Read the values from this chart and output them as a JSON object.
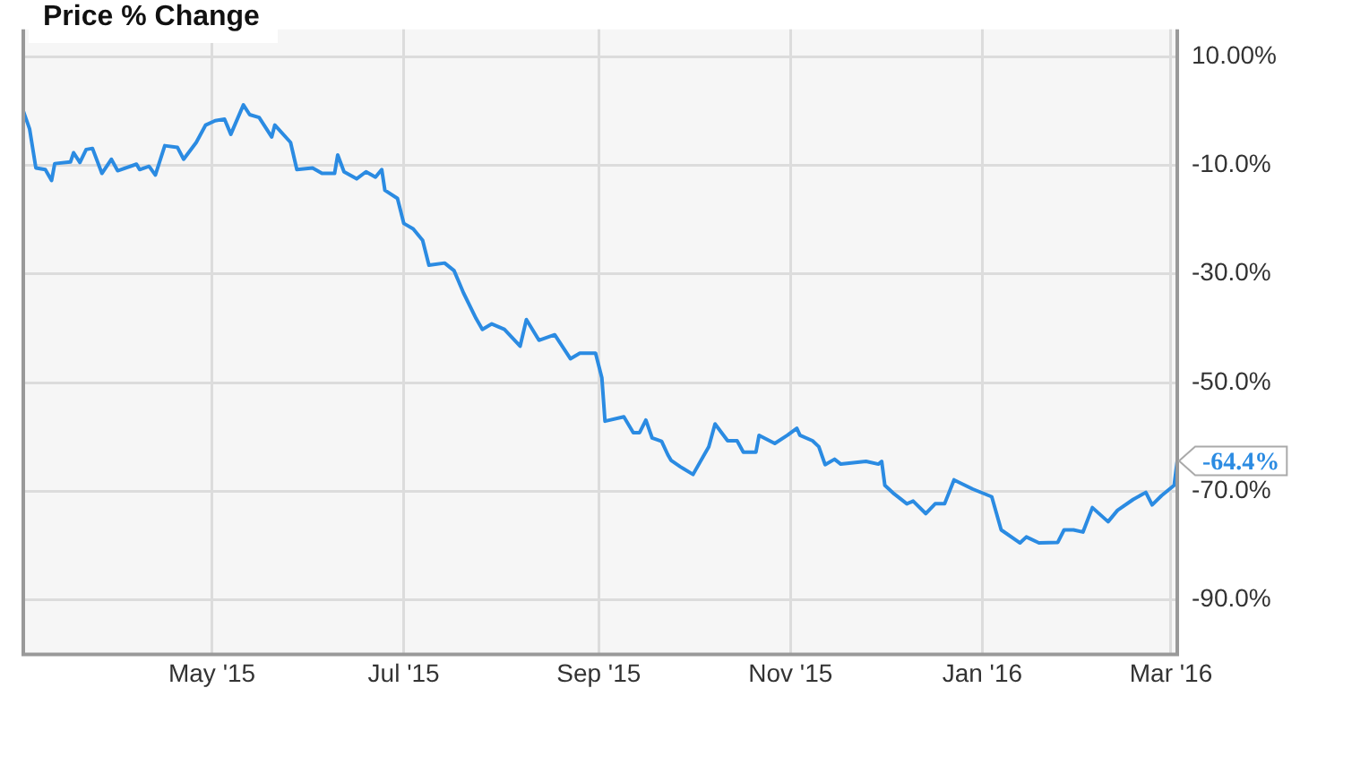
{
  "chart_data": {
    "type": "line",
    "title": "Price % Change",
    "x": [
      "2015-03-02",
      "2015-03-04",
      "2015-03-06",
      "2015-03-09",
      "2015-03-11",
      "2015-03-12",
      "2015-03-17",
      "2015-03-18",
      "2015-03-20",
      "2015-03-22",
      "2015-03-24",
      "2015-03-27",
      "2015-03-30",
      "2015-04-01",
      "2015-04-07",
      "2015-04-08",
      "2015-04-11",
      "2015-04-13",
      "2015-04-16",
      "2015-04-20",
      "2015-04-22",
      "2015-04-26",
      "2015-04-29",
      "2015-05-02",
      "2015-05-05",
      "2015-05-07",
      "2015-05-11",
      "2015-05-13",
      "2015-05-16",
      "2015-05-20",
      "2015-05-21",
      "2015-05-26",
      "2015-05-28",
      "2015-06-02",
      "2015-06-05",
      "2015-06-09",
      "2015-06-10",
      "2015-06-12",
      "2015-06-16",
      "2015-06-19",
      "2015-06-22",
      "2015-06-24",
      "2015-06-25",
      "2015-06-29",
      "2015-07-01",
      "2015-07-04",
      "2015-07-07",
      "2015-07-09",
      "2015-07-14",
      "2015-07-17",
      "2015-07-20",
      "2015-07-24",
      "2015-07-26",
      "2015-07-29",
      "2015-08-02",
      "2015-08-07",
      "2015-08-09",
      "2015-08-13",
      "2015-08-18",
      "2015-08-23",
      "2015-08-26",
      "2015-08-31",
      "2015-09-02",
      "2015-09-03",
      "2015-09-09",
      "2015-09-12",
      "2015-09-14",
      "2015-09-16",
      "2015-09-18",
      "2015-09-21",
      "2015-09-23",
      "2015-09-24",
      "2015-09-27",
      "2015-10-01",
      "2015-10-06",
      "2015-10-08",
      "2015-10-12",
      "2015-10-15",
      "2015-10-17",
      "2015-10-21",
      "2015-10-22",
      "2015-10-27",
      "2015-10-31",
      "2015-11-03",
      "2015-11-04",
      "2015-11-08",
      "2015-11-10",
      "2015-11-12",
      "2015-11-15",
      "2015-11-17",
      "2015-11-25",
      "2015-11-29",
      "2015-11-30",
      "2015-12-01",
      "2015-12-04",
      "2015-12-08",
      "2015-12-10",
      "2015-12-14",
      "2015-12-17",
      "2015-12-20",
      "2015-12-23",
      "2015-12-29",
      "2016-01-04",
      "2016-01-07",
      "2016-01-13",
      "2016-01-15",
      "2016-01-19",
      "2016-01-25",
      "2016-01-27",
      "2016-01-30",
      "2016-02-02",
      "2016-02-05",
      "2016-02-10",
      "2016-02-13",
      "2016-02-18",
      "2016-02-22",
      "2016-02-24",
      "2016-02-27",
      "2016-03-02",
      "2016-03-03"
    ],
    "series": [
      {
        "color": "#2b8be2",
        "values": [
          0,
          -3.3,
          -10.5,
          -10.8,
          -12.8,
          -9.7,
          -9.4,
          -7.7,
          -9.5,
          -7.1,
          -6.9,
          -11.5,
          -8.9,
          -11,
          -9.8,
          -10.8,
          -10.2,
          -11.8,
          -6.4,
          -6.7,
          -8.9,
          -5.8,
          -2.6,
          -1.8,
          -1.5,
          -4.3,
          1.1,
          -0.7,
          -1.2,
          -4.8,
          -2.6,
          -5.8,
          -10.8,
          -10.5,
          -11.5,
          -11.5,
          -8.1,
          -11.2,
          -12.5,
          -11.2,
          -12.2,
          -10.8,
          -14.6,
          -16.1,
          -20.7,
          -21.7,
          -23.8,
          -28.4,
          -28,
          -29.4,
          -33.5,
          -38.2,
          -40.2,
          -39.2,
          -40.2,
          -43.3,
          -38.4,
          -42.2,
          -41.2,
          -45.6,
          -44.6,
          -44.6,
          -49.1,
          -57.1,
          -56.3,
          -59.2,
          -59.2,
          -56.9,
          -60.2,
          -60.8,
          -63.3,
          -64.3,
          -65.5,
          -66.9,
          -61.8,
          -57.6,
          -60.7,
          -60.7,
          -62.8,
          -62.8,
          -59.7,
          -61.2,
          -59.7,
          -58.4,
          -59.7,
          -60.7,
          -61.8,
          -65.1,
          -64.1,
          -65,
          -64.5,
          -65,
          -64.5,
          -68.9,
          -70.5,
          -72.3,
          -71.8,
          -74.1,
          -72.3,
          -72.3,
          -67.9,
          -69.6,
          -71,
          -77.1,
          -79.5,
          -78.4,
          -79.5,
          -79.4,
          -77.1,
          -77.1,
          -77.5,
          -73,
          -75.6,
          -73.5,
          -71.5,
          -70.2,
          -72.5,
          -70.8,
          -68.9,
          -64.4
        ]
      }
    ],
    "xlim": [
      "2015-03-02",
      "2016-03-03"
    ],
    "xticks": [
      {
        "value": "2015-05-01",
        "label": "May '15"
      },
      {
        "value": "2015-07-01",
        "label": "Jul '15"
      },
      {
        "value": "2015-09-01",
        "label": "Sep '15"
      },
      {
        "value": "2015-11-01",
        "label": "Nov '15"
      },
      {
        "value": "2016-01-01",
        "label": "Jan '16"
      },
      {
        "value": "2016-03-01",
        "label": "Mar '16"
      }
    ],
    "ylim": [
      -100,
      15
    ],
    "yticks": [
      {
        "value": 10,
        "label": "10.00%"
      },
      {
        "value": -10,
        "label": "-10.0%"
      },
      {
        "value": -30,
        "label": "-30.0%"
      },
      {
        "value": -50,
        "label": "-50.0%"
      },
      {
        "value": -70,
        "label": "-70.0%"
      },
      {
        "value": -90,
        "label": "-90.0%"
      }
    ],
    "annotations": [
      {
        "text": "-64.4%",
        "x": "2016-03-03",
        "y": -64.4
      }
    ],
    "grid": true,
    "legend": false,
    "marker": "none",
    "line_style": "solid"
  }
}
